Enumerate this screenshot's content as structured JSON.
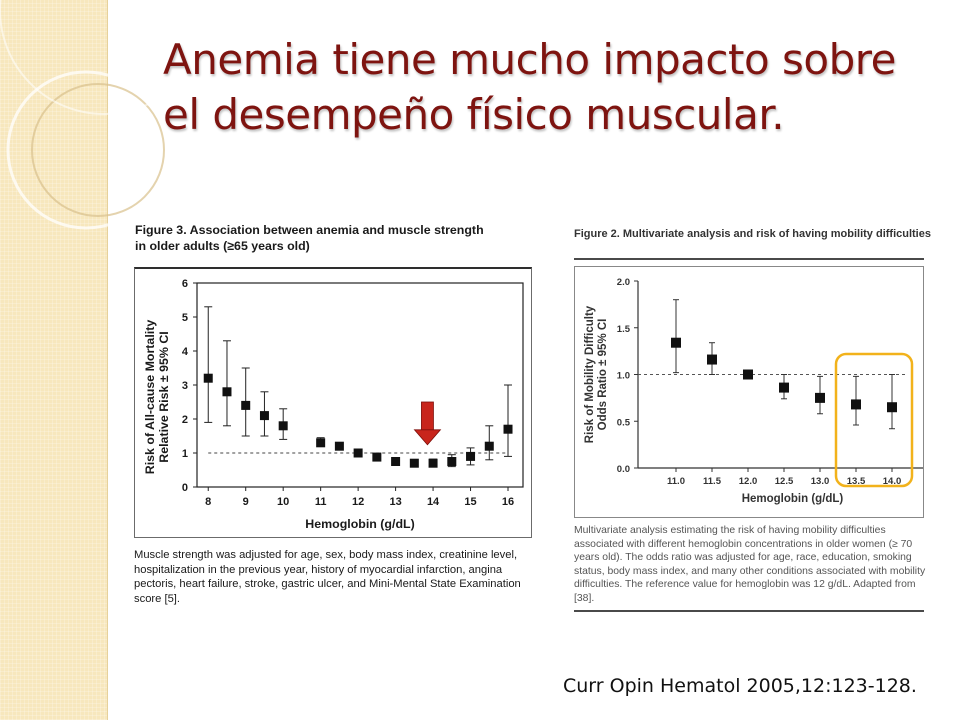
{
  "slide": {
    "title": "Anemia tiene mucho impacto sobre el desempeño físico muscular.",
    "citation": "Curr Opin Hematol 2005,12:123-128."
  },
  "figure3": {
    "heading": "Figure 3. Association between anemia and muscle strength",
    "heading_line2": "in older adults (≥65 years old)",
    "caption": "Muscle strength was adjusted for age, sex, body mass index, creatinine level, hospitalization in the previous year, history of myocardial infarction, angina pectoris, heart failure, stroke, gastric ulcer, and Mini-Mental State Examination score [5]."
  },
  "figure2": {
    "heading": "Figure 2. Multivariate analysis and risk of having mobility difficulties",
    "caption": "Multivariate analysis estimating the risk of having mobility difficulties associated with different hemoglobin concentrations in older women (≥ 70 years old). The odds ratio was adjusted for age, race, education, smoking status, body mass index, and many other conditions associated with mobility difficulties. The reference value for hemoglobin was 12 g/dL. Adapted from [38]."
  },
  "colors": {
    "title": "#7e1410",
    "arrow": "#c8251c",
    "highlight": "#f2b21b",
    "band": "#f7e7bd"
  },
  "chart_data": [
    {
      "type": "scatter",
      "title": "",
      "xlabel": "Hemoglobin (g/dL)",
      "ylabel": "Risk of All-cause Mortality",
      "ylabel2": "Relative Risk ± 95% CI",
      "xlim": [
        7.7,
        16.4
      ],
      "ylim": [
        0,
        6
      ],
      "xticks": [
        8,
        9,
        10,
        11,
        12,
        13,
        14,
        15,
        16
      ],
      "yticks": [
        0,
        1,
        2,
        3,
        4,
        5,
        6
      ],
      "reference_line": 1,
      "points": [
        {
          "x": 8.0,
          "y": 3.2,
          "lo": 1.9,
          "hi": 5.3
        },
        {
          "x": 8.5,
          "y": 2.8,
          "lo": 1.8,
          "hi": 4.3
        },
        {
          "x": 9.0,
          "y": 2.4,
          "lo": 1.5,
          "hi": 3.5
        },
        {
          "x": 9.5,
          "y": 2.1,
          "lo": 1.5,
          "hi": 2.8
        },
        {
          "x": 10.0,
          "y": 1.8,
          "lo": 1.4,
          "hi": 2.3
        },
        {
          "x": 11.0,
          "y": 1.3,
          "lo": 1.2,
          "hi": 1.45
        },
        {
          "x": 11.5,
          "y": 1.2
        },
        {
          "x": 12.0,
          "y": 1.0
        },
        {
          "x": 12.5,
          "y": 0.88
        },
        {
          "x": 13.0,
          "y": 0.75
        },
        {
          "x": 13.5,
          "y": 0.7
        },
        {
          "x": 14.0,
          "y": 0.7,
          "lo": 0.6,
          "hi": 0.82
        },
        {
          "x": 14.5,
          "y": 0.75,
          "lo": 0.6,
          "hi": 0.95
        },
        {
          "x": 15.0,
          "y": 0.9,
          "lo": 0.65,
          "hi": 1.15
        },
        {
          "x": 15.5,
          "y": 1.2,
          "lo": 0.8,
          "hi": 1.8
        },
        {
          "x": 16.0,
          "y": 1.7,
          "lo": 0.9,
          "hi": 3.0
        }
      ],
      "annotation": {
        "type": "arrow",
        "x": 13.85,
        "y_from": 2.5,
        "y_to": 1.3
      }
    },
    {
      "type": "scatter",
      "title": "",
      "xlabel": "Hemoglobin (g/dL)",
      "ylabel": "Risk of Mobility Difficulty",
      "ylabel2": "Odds Ratio ± 95% CI",
      "categories": [
        "11.0",
        "11.5",
        "12.0",
        "12.5",
        "13.0",
        "13.5",
        "14.0"
      ],
      "ylim": [
        0,
        2
      ],
      "yticks": [
        "0.0",
        "0.5",
        "1.0",
        "1.5",
        "2.0"
      ],
      "reference_line": 1,
      "points": [
        {
          "x": "11.0",
          "y": 1.34,
          "lo": 1.02,
          "hi": 1.8
        },
        {
          "x": "11.5",
          "y": 1.16,
          "lo": 1.0,
          "hi": 1.34
        },
        {
          "x": "12.0",
          "y": 1.0
        },
        {
          "x": "12.5",
          "y": 0.86,
          "lo": 0.74,
          "hi": 1.0
        },
        {
          "x": "13.0",
          "y": 0.75,
          "lo": 0.58,
          "hi": 0.98
        },
        {
          "x": "13.5",
          "y": 0.68,
          "lo": 0.46,
          "hi": 0.98
        },
        {
          "x": "14.0",
          "y": 0.65,
          "lo": 0.42,
          "hi": 1.0
        }
      ],
      "highlight_categories": [
        "13.5",
        "14.0"
      ]
    }
  ]
}
